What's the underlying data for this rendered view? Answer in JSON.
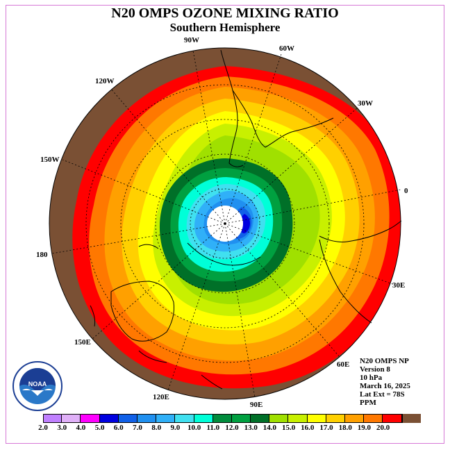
{
  "title": "N20 OMPS OZONE MIXING RATIO",
  "subtitle": "Southern Hemisphere",
  "longitude_labels": [
    "90W",
    "60W",
    "30W",
    "0",
    "30E",
    "60E",
    "90E",
    "120E",
    "150E",
    "180",
    "150W",
    "120W"
  ],
  "info": {
    "line1": "N20 OMPS NP",
    "line2": "Version 8",
    "line3": "10 hPa",
    "line4": "March 16, 2025",
    "line5": "Lat Ext = 78S",
    "line6": "PPM"
  },
  "logo": {
    "text": "NOAA",
    "icon": "noaa-logo"
  },
  "colorbar": {
    "colors": [
      "#c080ff",
      "#e0b0f8",
      "#ff00ff",
      "#0000e0",
      "#1060e8",
      "#2090f0",
      "#30b0f8",
      "#40e0f0",
      "#00ffd8",
      "#008c3c",
      "#00a040",
      "#007028",
      "#a0e000",
      "#c8f000",
      "#ffff00",
      "#ffd000",
      "#ffa000",
      "#ff7800",
      "#ff0000",
      "#7a5034"
    ],
    "ticks": [
      "2.0",
      "3.0",
      "4.0",
      "5.0",
      "6.0",
      "7.0",
      "8.0",
      "9.0",
      "10.0",
      "11.0",
      "12.0",
      "13.0",
      "14.0",
      "15.0",
      "16.0",
      "17.0",
      "18.0",
      "19.0",
      "20.0"
    ]
  }
}
